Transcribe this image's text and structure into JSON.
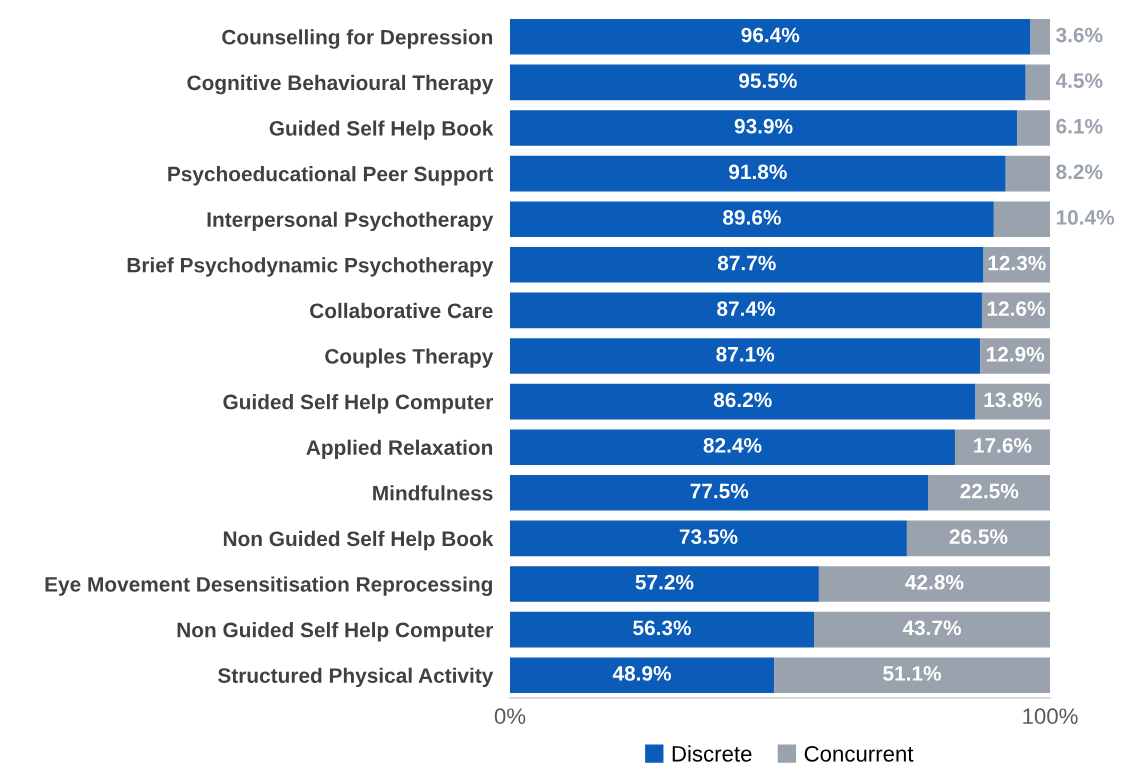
{
  "chart_data": {
    "type": "bar",
    "orientation": "horizontal",
    "stacked": true,
    "categories": [
      "Counselling for Depression",
      "Cognitive Behavioural Therapy",
      "Guided Self Help Book",
      "Psychoeducational Peer Support",
      "Interpersonal Psychotherapy",
      "Brief Psychodynamic Psychotherapy",
      "Collaborative Care",
      "Couples Therapy",
      "Guided Self Help Computer",
      "Applied Relaxation",
      "Mindfulness",
      "Non Guided Self Help Book",
      "Eye Movement Desensitisation Reprocessing",
      "Non Guided Self Help Computer",
      "Structured Physical Activity"
    ],
    "series": [
      {
        "name": "Discrete",
        "color": "#0a5cb8",
        "values": [
          96.4,
          95.5,
          93.9,
          91.8,
          89.6,
          87.7,
          87.4,
          87.1,
          86.2,
          82.4,
          77.5,
          73.5,
          57.2,
          56.3,
          48.9
        ],
        "value_labels": [
          "96.4%",
          "95.5%",
          "93.9%",
          "91.8%",
          "89.6%",
          "87.7%",
          "87.4%",
          "87.1%",
          "86.2%",
          "82.4%",
          "77.5%",
          "73.5%",
          "57.2%",
          "56.3%",
          "48.9%"
        ]
      },
      {
        "name": "Concurrent",
        "color": "#9aa3ad",
        "values": [
          3.6,
          4.5,
          6.1,
          8.2,
          10.4,
          12.3,
          12.6,
          12.9,
          13.8,
          17.6,
          22.5,
          26.5,
          42.8,
          43.7,
          51.1
        ],
        "value_labels": [
          "3.6%",
          "4.5%",
          "6.1%",
          "8.2%",
          "10.4%",
          "12.3%",
          "12.6%",
          "12.9%",
          "13.8%",
          "17.6%",
          "22.5%",
          "26.5%",
          "42.8%",
          "43.7%",
          "51.1%"
        ]
      }
    ],
    "xlim": [
      0,
      100
    ],
    "xticks": [
      {
        "value": 0,
        "label": "0%"
      },
      {
        "value": 100,
        "label": "100%"
      }
    ],
    "grid": false,
    "legend": "bottom"
  }
}
